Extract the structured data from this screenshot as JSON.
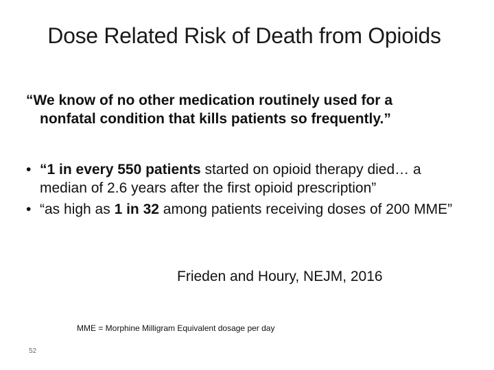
{
  "slide": {
    "title": "Dose Related Risk of Death from Opioids",
    "quote": {
      "line1": "“We know of no other medication routinely used for a",
      "line2": "nonfatal condition that kills patients so frequently.”"
    },
    "bullets": [
      {
        "marker": "•",
        "bold": "“1 in every 550 patients",
        "text": " started on opioid therapy died… a median of 2.6 years after the first opioid prescription”"
      },
      {
        "marker": "•",
        "pre": "“as high as ",
        "bold": "1 in 32",
        "text": " among patients receiving doses of 200 MME”"
      }
    ],
    "citation": "Frieden and Houry, NEJM, 2016",
    "footnote": "MME = Morphine Milligram Equivalent dosage per day",
    "page_number": "52"
  },
  "colors": {
    "background": "#ffffff",
    "text": "#111111",
    "page_number": "#5a6c8a"
  }
}
